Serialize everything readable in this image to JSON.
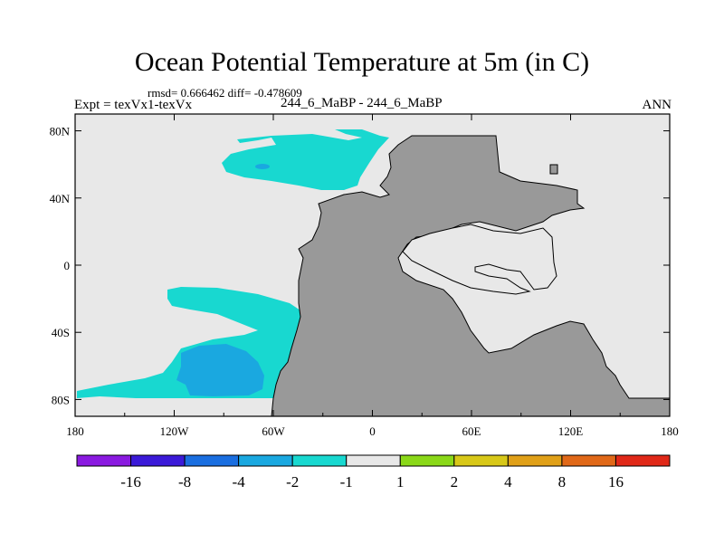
{
  "chart_data": {
    "type": "heatmap",
    "title": "Ocean Potential Temperature at 5m (in C)",
    "stats_line": "rmsd= 0.666462 diff= -0.478609",
    "experiment": "Expt = texVx1-texVx",
    "case": "244_6_MaBP - 244_6_MaBP",
    "season": "ANN",
    "x_ticks": [
      "180",
      "120W",
      "60W",
      "0",
      "60E",
      "120E",
      "180"
    ],
    "y_ticks": [
      "80N",
      "40N",
      "0",
      "40S",
      "80S"
    ],
    "xlim": [
      -180,
      180
    ],
    "ylim": [
      -90,
      90
    ],
    "colorbar": {
      "levels": [
        "-16",
        "-8",
        "-4",
        "-2",
        "-1",
        "1",
        "2",
        "4",
        "8",
        "16"
      ],
      "colors": [
        "#8a1ae0",
        "#3b1ad8",
        "#1a6ee0",
        "#1aa8e0",
        "#18d8d0",
        "#e8e8e8",
        "#8ad818",
        "#d8c818",
        "#e0a018",
        "#e06818",
        "#e02818"
      ]
    },
    "colors": {
      "background": "#e8e8e8",
      "land": "#999999",
      "cyan": "#18d8d0",
      "blue": "#1aa8e0"
    }
  }
}
